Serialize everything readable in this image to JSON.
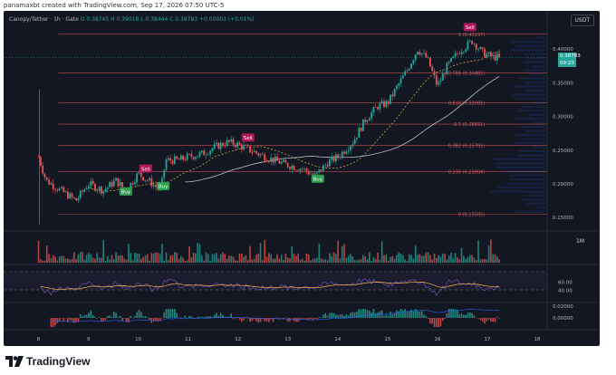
{
  "caption": "panamaxbt created with TradingView.com, Sep 17, 2026 07:50 UTC-5",
  "legend": {
    "symbol": "Canopy/Tether · 1h · Gate",
    "ohlc": "O 0.38745  H 0.39018  L 0.38444  C 0.38783  +0.00003 (+0.01%)"
  },
  "currency_button": "USDT",
  "price_tag": {
    "price": "0.38783",
    "countdown": "09:23"
  },
  "price_axis": {
    "range": [
      0.13,
      0.45
    ],
    "ticks": [
      {
        "label": "0.40000",
        "value": 0.4
      },
      {
        "label": "0.35000",
        "value": 0.35
      },
      {
        "label": "0.30000",
        "value": 0.3
      },
      {
        "label": "0.25000",
        "value": 0.25
      },
      {
        "label": "0.20000",
        "value": 0.2
      },
      {
        "label": "0.15000",
        "value": 0.15
      }
    ]
  },
  "fib_levels": [
    {
      "label": "1 (0.42197)",
      "value": 0.42197
    },
    {
      "label": "0.786 (0.36485)",
      "value": 0.36485
    },
    {
      "label": "0.618 (0.32001)",
      "value": 0.32001
    },
    {
      "label": "0.5 (0.28851)",
      "value": 0.28851
    },
    {
      "label": "0.382 (0.25701)",
      "value": 0.25701
    },
    {
      "label": "0.236 (0.21804)",
      "value": 0.21804
    },
    {
      "label": "0 (0.15505)",
      "value": 0.15505
    }
  ],
  "signals": [
    {
      "type": "Buy",
      "day": 9.75,
      "value": 0.188
    },
    {
      "type": "Buy",
      "day": 10.5,
      "value": 0.196
    },
    {
      "type": "Sell",
      "day": 10.15,
      "value": 0.222
    },
    {
      "type": "Sell",
      "day": 12.2,
      "value": 0.268
    },
    {
      "type": "Buy",
      "day": 13.6,
      "value": 0.207
    },
    {
      "type": "Sell",
      "day": 16.65,
      "value": 0.432
    }
  ],
  "time_axis": {
    "range": [
      7.3,
      18.2
    ],
    "ticks": [
      {
        "label": "8",
        "value": 8
      },
      {
        "label": "9",
        "value": 9
      },
      {
        "label": "10",
        "value": 10
      },
      {
        "label": "11",
        "value": 11
      },
      {
        "label": "12",
        "value": 12
      },
      {
        "label": "13",
        "value": 13
      },
      {
        "label": "14",
        "value": 14
      },
      {
        "label": "15",
        "value": 15
      },
      {
        "label": "16",
        "value": 16
      },
      {
        "label": "17",
        "value": 17
      },
      {
        "label": "18",
        "value": 18
      }
    ]
  },
  "volume_pane": {
    "label": "1M"
  },
  "rsi_pane": {
    "ticks": [
      {
        "label": "60.00",
        "value": 60
      },
      {
        "label": "40.00",
        "value": 40
      }
    ]
  },
  "macd_pane": {
    "ticks": [
      {
        "label": "0.02000",
        "value": 0.02
      },
      {
        "label": "0.00000",
        "value": 0.0
      }
    ]
  },
  "colors": {
    "up": "#26a69a",
    "down": "#ef5350",
    "fib": "#e05a5a",
    "buy": "#2e9e4f",
    "sell": "#b0165a",
    "background": "#131722"
  },
  "chart_data": {
    "type": "candlestick",
    "x_unit": "day of month",
    "price_path": [
      [
        8.0,
        0.24
      ],
      [
        8.15,
        0.205
      ],
      [
        8.35,
        0.195
      ],
      [
        8.55,
        0.185
      ],
      [
        8.75,
        0.175
      ],
      [
        9.0,
        0.2
      ],
      [
        9.3,
        0.19
      ],
      [
        9.55,
        0.205
      ],
      [
        9.75,
        0.19
      ],
      [
        10.0,
        0.215
      ],
      [
        10.2,
        0.205
      ],
      [
        10.45,
        0.19
      ],
      [
        10.55,
        0.235
      ],
      [
        10.8,
        0.235
      ],
      [
        11.0,
        0.24
      ],
      [
        11.3,
        0.245
      ],
      [
        11.55,
        0.255
      ],
      [
        11.8,
        0.262
      ],
      [
        12.0,
        0.258
      ],
      [
        12.3,
        0.248
      ],
      [
        12.55,
        0.24
      ],
      [
        12.8,
        0.233
      ],
      [
        13.0,
        0.228
      ],
      [
        13.3,
        0.222
      ],
      [
        13.55,
        0.212
      ],
      [
        13.8,
        0.232
      ],
      [
        14.0,
        0.24
      ],
      [
        14.3,
        0.262
      ],
      [
        14.55,
        0.295
      ],
      [
        14.8,
        0.315
      ],
      [
        15.0,
        0.32
      ],
      [
        15.2,
        0.345
      ],
      [
        15.4,
        0.37
      ],
      [
        15.6,
        0.4
      ],
      [
        15.8,
        0.385
      ],
      [
        16.0,
        0.345
      ],
      [
        16.2,
        0.375
      ],
      [
        16.45,
        0.398
      ],
      [
        16.7,
        0.412
      ],
      [
        16.9,
        0.395
      ],
      [
        17.1,
        0.388
      ],
      [
        17.25,
        0.388
      ]
    ],
    "last_price": 0.38783
  }
}
